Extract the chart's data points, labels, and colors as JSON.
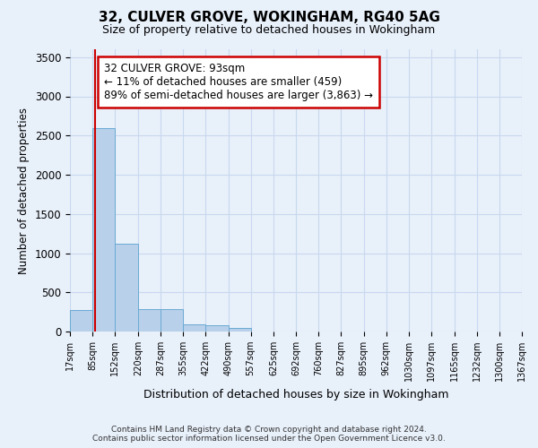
{
  "title_line1": "32, CULVER GROVE, WOKINGHAM, RG40 5AG",
  "title_line2": "Size of property relative to detached houses in Wokingham",
  "xlabel": "Distribution of detached houses by size in Wokingham",
  "ylabel": "Number of detached properties",
  "footer_line1": "Contains HM Land Registry data © Crown copyright and database right 2024.",
  "footer_line2": "Contains public sector information licensed under the Open Government Licence v3.0.",
  "bar_edges": [
    17,
    85,
    152,
    220,
    287,
    355,
    422,
    490,
    557,
    625,
    692,
    760,
    827,
    895,
    962,
    1030,
    1097,
    1165,
    1232,
    1300,
    1367
  ],
  "bar_heights": [
    270,
    2600,
    1120,
    290,
    285,
    95,
    75,
    50,
    0,
    0,
    0,
    0,
    0,
    0,
    0,
    0,
    0,
    0,
    0,
    0
  ],
  "bar_color": "#b8d0ea",
  "bar_edge_color": "#6aaad4",
  "grid_color": "#c8d8ee",
  "bg_color": "#e8f0fa",
  "property_size": 93,
  "property_line_color": "#cc0000",
  "annotation_line1": "32 CULVER GROVE: 93sqm",
  "annotation_line2": "← 11% of detached houses are smaller (459)",
  "annotation_line3": "89% of semi-detached houses are larger (3,863) →",
  "annotation_box_facecolor": "#ffffff",
  "annotation_box_edgecolor": "#cc0000",
  "ylim_max": 3600,
  "yticks": [
    0,
    500,
    1000,
    1500,
    2000,
    2500,
    3000,
    3500
  ]
}
